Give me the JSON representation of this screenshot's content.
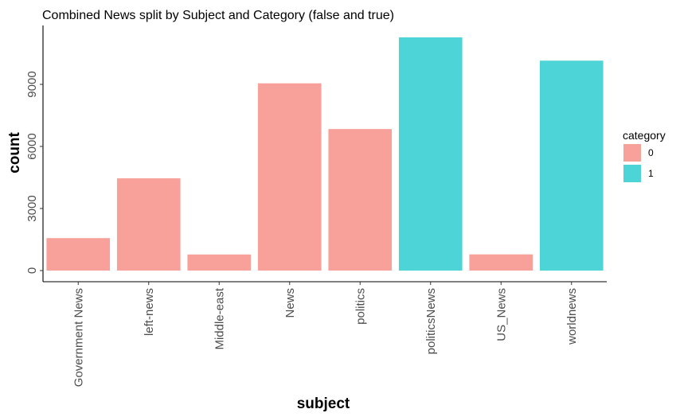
{
  "chart_data": {
    "type": "bar",
    "title": "Combined News split by Subject and Category (false and true)",
    "xlabel": "subject",
    "ylabel": "count",
    "categories": [
      "Government News",
      "left-news",
      "Middle-east",
      "News",
      "politics",
      "politicsNews",
      "US_News",
      "worldnews"
    ],
    "values": [
      1570,
      4459,
      778,
      9050,
      6841,
      11272,
      783,
      10145
    ],
    "category_of_bar": [
      "0",
      "0",
      "0",
      "0",
      "0",
      "1",
      "0",
      "1"
    ],
    "yticks": [
      0,
      3000,
      6000,
      9000
    ],
    "ylim": [
      0,
      11300
    ],
    "grid": false,
    "legend": {
      "title": "category",
      "position": "right",
      "entries": [
        {
          "label": "0",
          "color": "#F8A09A"
        },
        {
          "label": "1",
          "color": "#4DD4D6"
        }
      ]
    }
  }
}
